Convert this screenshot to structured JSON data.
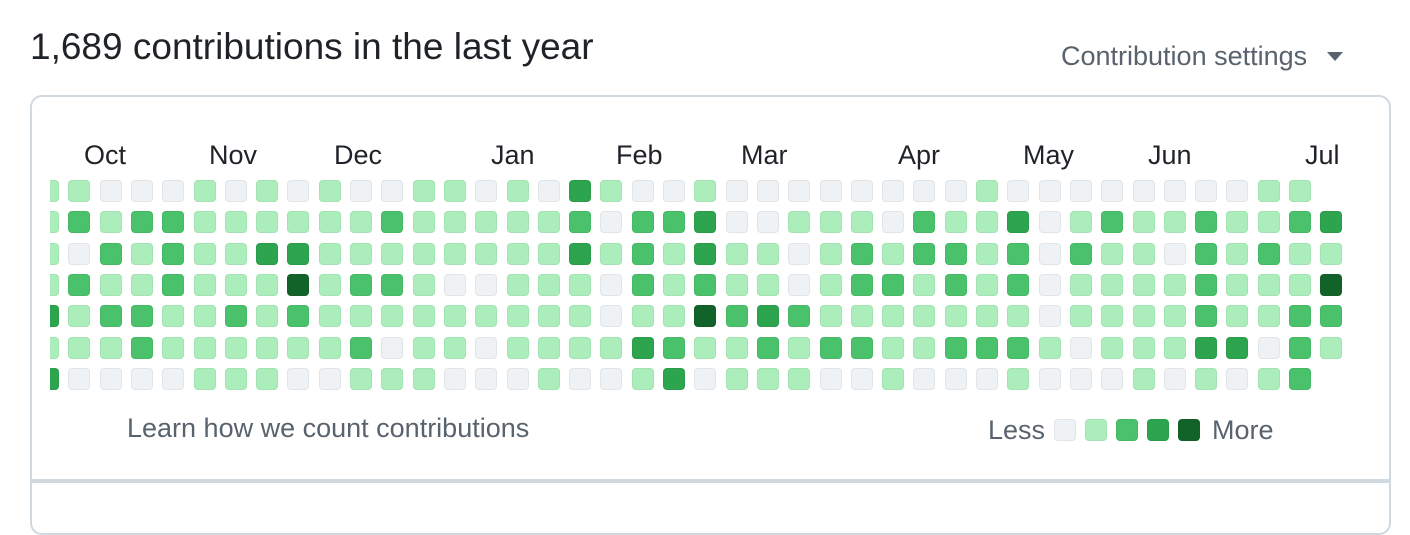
{
  "header": {
    "title": "1,689 contributions in the last year",
    "settings_label": "Contribution settings",
    "settings_icon": "triangle-down-icon"
  },
  "calendar": {
    "months": [
      {
        "label": "Oct",
        "week": 1.5
      },
      {
        "label": "Nov",
        "week": 5.5
      },
      {
        "label": "Dec",
        "week": 9.5
      },
      {
        "label": "Jan",
        "week": 14.5
      },
      {
        "label": "Feb",
        "week": 18.5
      },
      {
        "label": "Mar",
        "week": 22.5
      },
      {
        "label": "Apr",
        "week": 27.5
      },
      {
        "label": "May",
        "week": 31.5
      },
      {
        "label": "Jun",
        "week": 35.5
      },
      {
        "label": "Jul",
        "week": 40.5
      }
    ],
    "levels": [
      [
        1,
        1,
        0,
        0,
        0,
        1,
        0,
        1,
        0,
        1,
        0,
        0,
        1,
        1,
        0,
        1,
        0,
        3,
        1,
        0,
        0,
        1,
        0,
        0,
        0,
        0,
        0,
        0,
        0,
        0,
        1,
        0,
        0,
        0,
        0,
        0,
        0,
        0,
        0,
        1,
        1
      ],
      [
        1,
        2,
        1,
        2,
        2,
        1,
        1,
        1,
        1,
        1,
        1,
        2,
        1,
        1,
        1,
        1,
        1,
        2,
        0,
        2,
        2,
        3,
        0,
        0,
        1,
        1,
        1,
        0,
        2,
        1,
        1,
        3,
        0,
        1,
        2,
        1,
        1,
        2,
        1,
        1,
        2,
        3
      ],
      [
        1,
        0,
        2,
        1,
        2,
        1,
        1,
        3,
        3,
        1,
        1,
        1,
        1,
        1,
        1,
        1,
        1,
        3,
        1,
        2,
        1,
        3,
        1,
        1,
        0,
        1,
        2,
        1,
        2,
        2,
        1,
        2,
        0,
        2,
        1,
        1,
        0,
        2,
        1,
        2,
        1,
        1
      ],
      [
        1,
        2,
        1,
        1,
        2,
        1,
        1,
        1,
        4,
        1,
        2,
        2,
        1,
        0,
        0,
        1,
        1,
        1,
        0,
        2,
        1,
        2,
        1,
        1,
        0,
        1,
        2,
        2,
        1,
        2,
        1,
        2,
        0,
        1,
        1,
        1,
        1,
        2,
        1,
        1,
        1,
        4
      ],
      [
        3,
        1,
        2,
        2,
        1,
        1,
        2,
        1,
        2,
        1,
        1,
        1,
        1,
        1,
        1,
        1,
        1,
        1,
        0,
        1,
        1,
        4,
        2,
        3,
        2,
        1,
        1,
        1,
        1,
        1,
        1,
        1,
        0,
        1,
        1,
        1,
        1,
        2,
        1,
        1,
        2,
        2
      ],
      [
        1,
        1,
        1,
        2,
        1,
        1,
        1,
        1,
        1,
        1,
        2,
        0,
        1,
        1,
        0,
        1,
        1,
        1,
        1,
        3,
        2,
        1,
        1,
        2,
        1,
        2,
        2,
        1,
        1,
        2,
        2,
        2,
        1,
        0,
        1,
        1,
        1,
        3,
        3,
        0,
        2,
        1
      ],
      [
        3,
        0,
        0,
        0,
        0,
        1,
        1,
        1,
        0,
        0,
        1,
        1,
        1,
        0,
        0,
        0,
        1,
        0,
        0,
        1,
        3,
        0,
        1,
        1,
        1,
        0,
        0,
        1,
        0,
        0,
        0,
        1,
        0,
        0,
        0,
        1,
        0,
        1,
        0,
        1,
        2
      ]
    ],
    "colors": [
      "#eff2f5",
      "#aceebb",
      "#4ac26b",
      "#2da44e",
      "#116329"
    ]
  },
  "footer": {
    "link_label": "Learn how we count contributions",
    "legend_less": "Less",
    "legend_more": "More"
  }
}
